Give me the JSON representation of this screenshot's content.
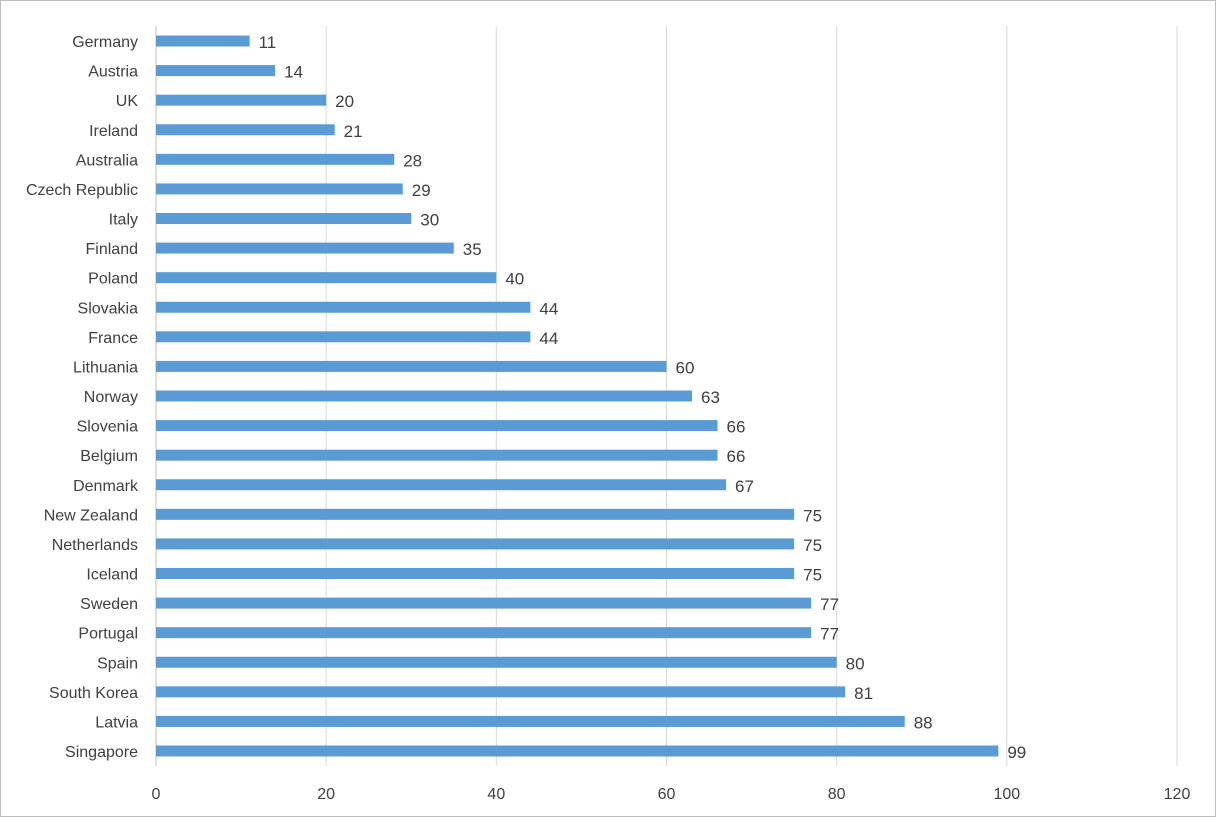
{
  "chart_data": {
    "type": "bar",
    "orientation": "horizontal",
    "categories": [
      "Germany",
      "Austria",
      "UK",
      "Ireland",
      "Australia",
      "Czech Republic",
      "Italy",
      "Finland",
      "Poland",
      "Slovakia",
      "France",
      "Lithuania",
      "Norway",
      "Slovenia",
      "Belgium",
      "Denmark",
      "New Zealand",
      "Netherlands",
      "Iceland",
      "Sweden",
      "Portugal",
      "Spain",
      "South Korea",
      "Latvia",
      "Singapore"
    ],
    "values": [
      11,
      14,
      20,
      21,
      28,
      29,
      30,
      35,
      40,
      44,
      44,
      60,
      63,
      66,
      66,
      67,
      75,
      75,
      75,
      77,
      77,
      80,
      81,
      88,
      99
    ],
    "xlim": [
      0,
      120
    ],
    "xticks": [
      "0",
      "20",
      "40",
      "60",
      "80",
      "100",
      "120"
    ],
    "grid": true,
    "bar_color": "#5b9bd5",
    "data_labels": true,
    "legend": "none"
  }
}
